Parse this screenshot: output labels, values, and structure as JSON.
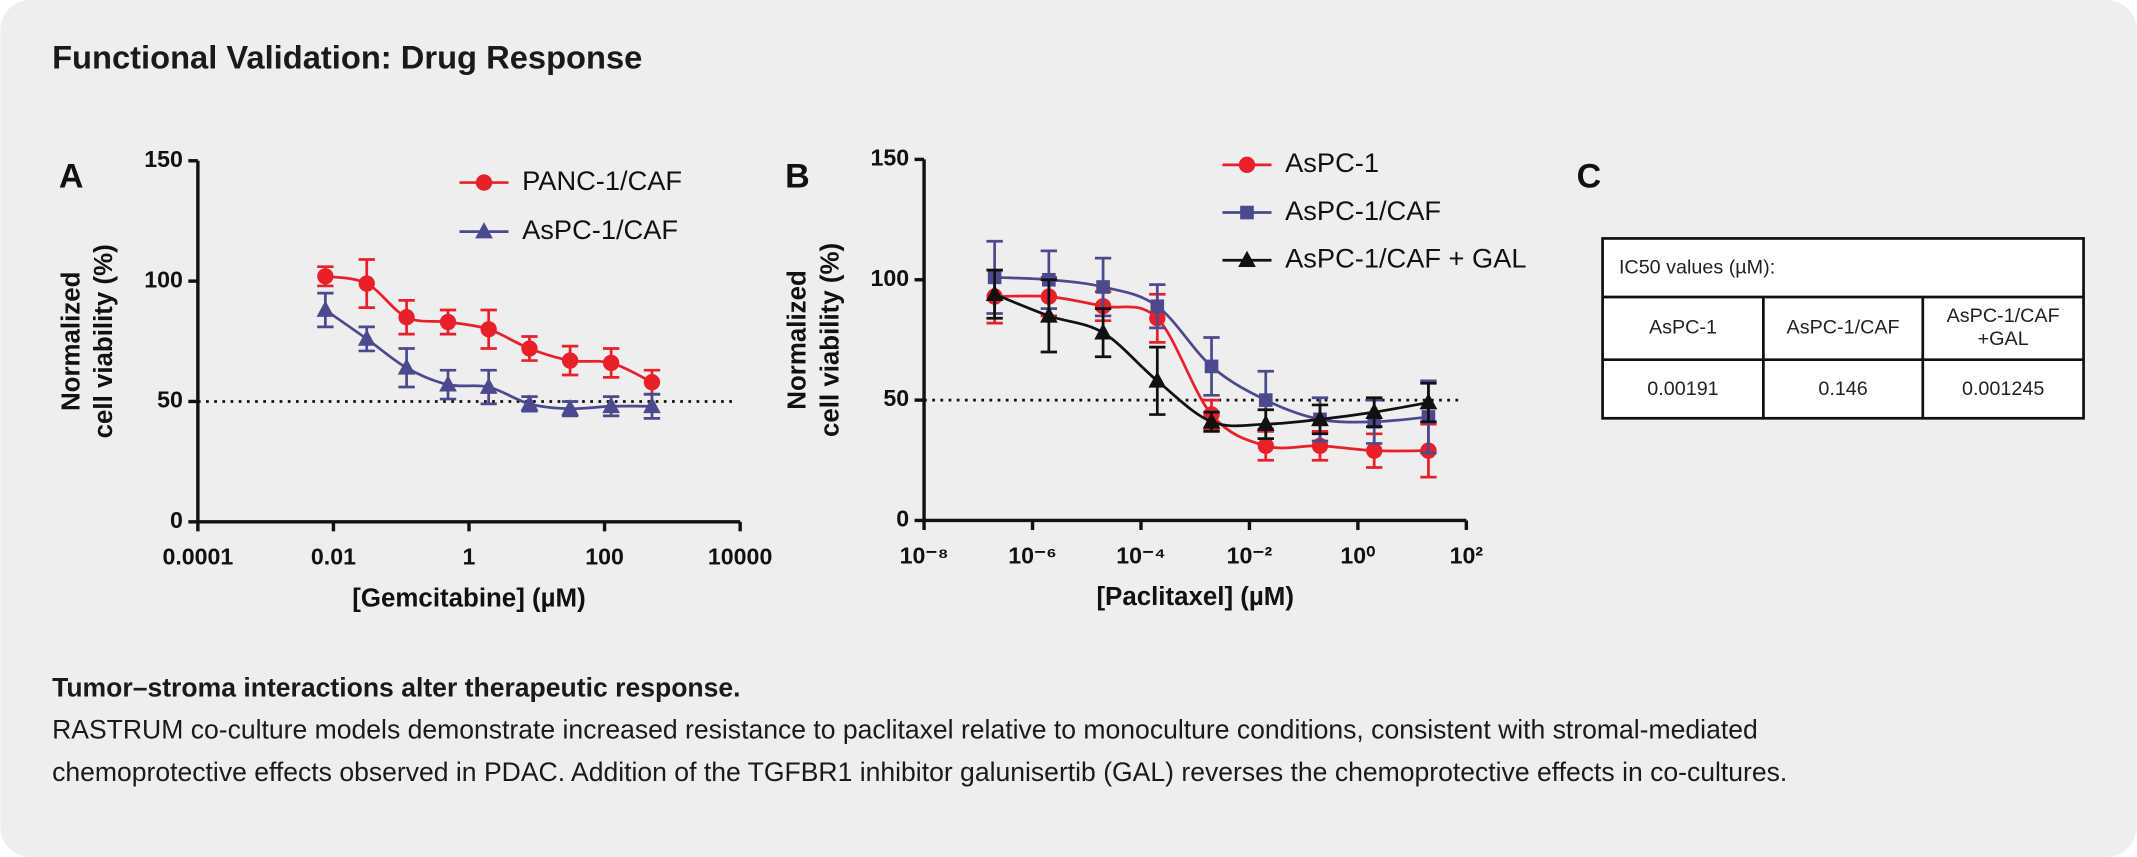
{
  "title": "Functional Validation: Drug Response",
  "chart_data": [
    {
      "type": "scatter",
      "panel": "A",
      "x_label": "[Gemcitabine] (µM)",
      "y_label": [
        "Normalized",
        "cell viability (%)"
      ],
      "x_log": true,
      "xlim": [
        0.0001,
        10000
      ],
      "xticks": [
        0.0001,
        0.01,
        1,
        100,
        10000
      ],
      "ylim": [
        0,
        150
      ],
      "yticks": [
        0,
        50,
        100,
        150
      ],
      "reference_line": 50,
      "legend": "upper right",
      "x": [
        0.0076,
        0.031,
        0.12,
        0.49,
        1.95,
        7.8,
        31,
        125,
        500
      ],
      "series": [
        {
          "name": "PANC-1/CAF",
          "color": "#e8202a",
          "marker": "circle",
          "values": [
            102,
            99,
            85,
            83,
            80,
            72,
            67,
            66,
            58
          ],
          "errors": [
            4,
            10,
            7,
            5,
            8,
            5,
            6,
            6,
            5
          ]
        },
        {
          "name": "AsPC-1/CAF",
          "color": "#4b4a8f",
          "marker": "triangle",
          "values": [
            88,
            76,
            64,
            57,
            56,
            49,
            47,
            48,
            48
          ],
          "errors": [
            7,
            5,
            8,
            6,
            7,
            3,
            3,
            4,
            5
          ]
        }
      ]
    },
    {
      "type": "scatter",
      "panel": "B",
      "x_label": "[Paclitaxel] (µM)",
      "y_label": [
        "Normalized",
        "cell viability (%)"
      ],
      "x_log": true,
      "xlim": [
        1e-08,
        100
      ],
      "xticks": [
        {
          "value": 1e-08,
          "label": "10⁻⁸"
        },
        {
          "value": 1e-06,
          "label": "10⁻⁶"
        },
        {
          "value": 0.0001,
          "label": "10⁻⁴"
        },
        {
          "value": 0.01,
          "label": "10⁻²"
        },
        {
          "value": 1,
          "label": "10⁰"
        },
        {
          "value": 100,
          "label": "10²"
        }
      ],
      "ylim": [
        0,
        150
      ],
      "yticks": [
        0,
        50,
        100,
        150
      ],
      "reference_line": 50,
      "legend": "upper right",
      "x": [
        2e-07,
        2e-06,
        2e-05,
        0.0002,
        0.002,
        0.02,
        0.2,
        2,
        20
      ],
      "series": [
        {
          "name": "AsPC-1",
          "color": "#e8202a",
          "marker": "circle",
          "values": [
            93,
            93,
            89,
            84,
            44,
            31,
            31,
            29,
            29
          ],
          "errors": [
            11,
            8,
            6,
            10,
            6,
            6,
            6,
            7,
            11
          ]
        },
        {
          "name": "AsPC-1/CAF",
          "color": "#4b4a8f",
          "marker": "square",
          "values": [
            101,
            100,
            97,
            89,
            64,
            50,
            42,
            41,
            43
          ],
          "errors": [
            15,
            12,
            12,
            9,
            12,
            12,
            9,
            9,
            15
          ]
        },
        {
          "name": "AsPC-1/CAF + GAL",
          "color": "#111111",
          "marker": "triangle",
          "values": [
            94,
            85,
            78,
            58,
            41,
            40,
            42,
            45,
            49
          ],
          "errors": [
            10,
            15,
            10,
            14,
            4,
            6,
            6,
            6,
            8
          ]
        }
      ]
    }
  ],
  "table": {
    "panel": "C",
    "title": "IC50 values (µM):",
    "headers": [
      [
        "AsPC-1"
      ],
      [
        "AsPC-1/CAF"
      ],
      [
        "AsPC-1/CAF",
        "+GAL"
      ]
    ],
    "values": [
      0.00191,
      0.146,
      0.001245
    ]
  },
  "caption": {
    "heading": "Tumor–stroma interactions alter therapeutic response.",
    "lines": [
      "RASTRUM co-culture models demonstrate increased resistance to paclitaxel relative to monoculture conditions, consistent with stromal-mediated",
      "chemoprotective effects observed in PDAC. Addition of the TGFBR1 inhibitor galunisertib (GAL) reverses the chemoprotective effects in co-cultures."
    ]
  }
}
